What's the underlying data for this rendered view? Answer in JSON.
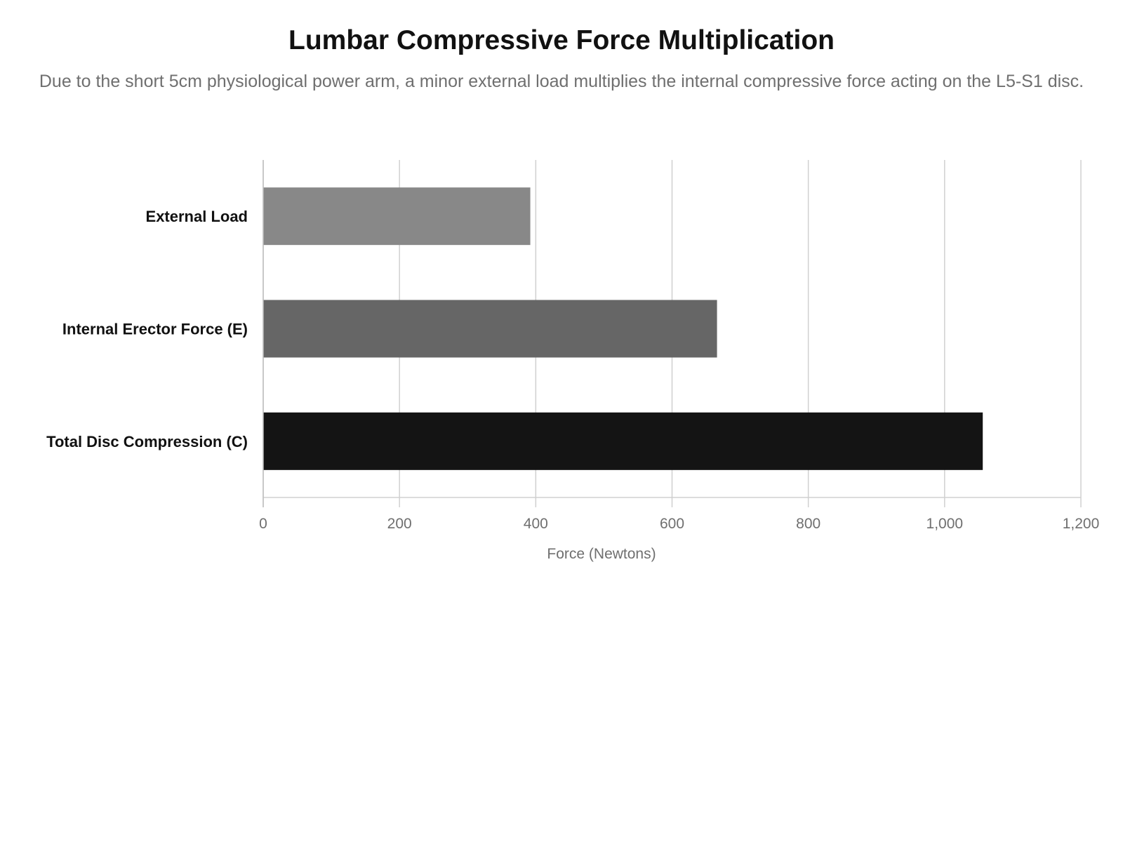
{
  "chart_data": {
    "type": "bar",
    "orientation": "horizontal",
    "title": "Lumbar Compressive Force Multiplication",
    "subtitle": "Due to the short 5cm physiological power arm, a minor external load multiplies the internal compressive force acting on the L5-S1 disc.",
    "xlabel": "Force (Newtons)",
    "ylabel": "",
    "xlim": [
      0,
      1200
    ],
    "xticks": [
      0,
      200,
      400,
      600,
      800,
      1000,
      1200
    ],
    "xtick_labels": [
      "0",
      "200",
      "400",
      "600",
      "800",
      "1,000",
      "1,200"
    ],
    "grid": true,
    "categories": [
      "External Load",
      "Internal Erector Force (E)",
      "Total Disc Compression (C)"
    ],
    "values": [
      392,
      666,
      1056
    ],
    "colors": [
      "#888888",
      "#666666",
      "#141414"
    ]
  }
}
